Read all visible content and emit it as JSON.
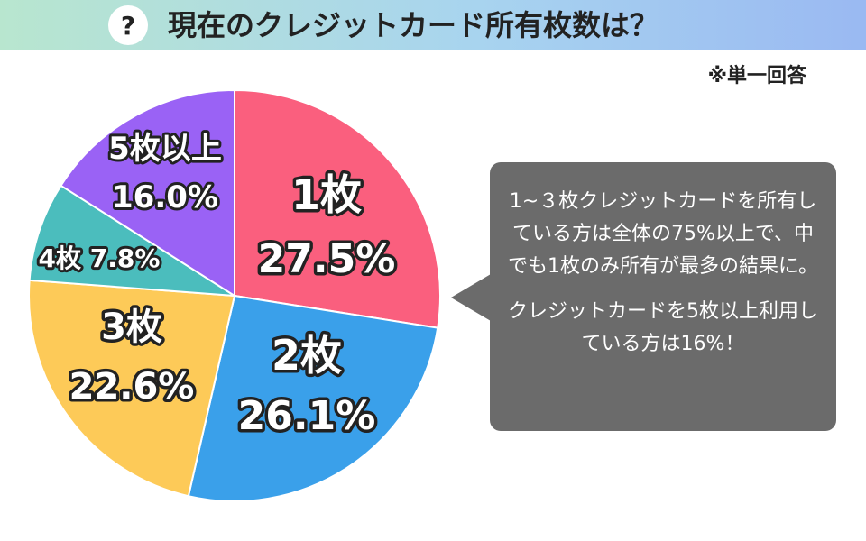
{
  "header": {
    "icon": "question-icon",
    "icon_glyph": "?",
    "title": "現在のクレジットカード所有枚数は？",
    "note": "※単一回答"
  },
  "callout": {
    "paragraph1": "1~３枚クレジットカードを所有している方は全体の75%以上で、中でも1枚のみ所有が最多の結果に。",
    "paragraph2": "クレジットカードを5枚以上利用している方は16%！"
  },
  "chart_data": {
    "type": "pie",
    "categories": [
      "1枚",
      "2枚",
      "3枚",
      "4枚",
      "5枚以上"
    ],
    "values": [
      27.5,
      26.1,
      22.6,
      7.8,
      16.0
    ],
    "value_labels": [
      "27.5%",
      "26.1%",
      "22.6%",
      "7.8%",
      "16.0%"
    ],
    "colors": [
      "#fa5f7e",
      "#3aa0ea",
      "#fdca58",
      "#4bbdbd",
      "#9a62f5"
    ],
    "start": "top, clockwise"
  }
}
